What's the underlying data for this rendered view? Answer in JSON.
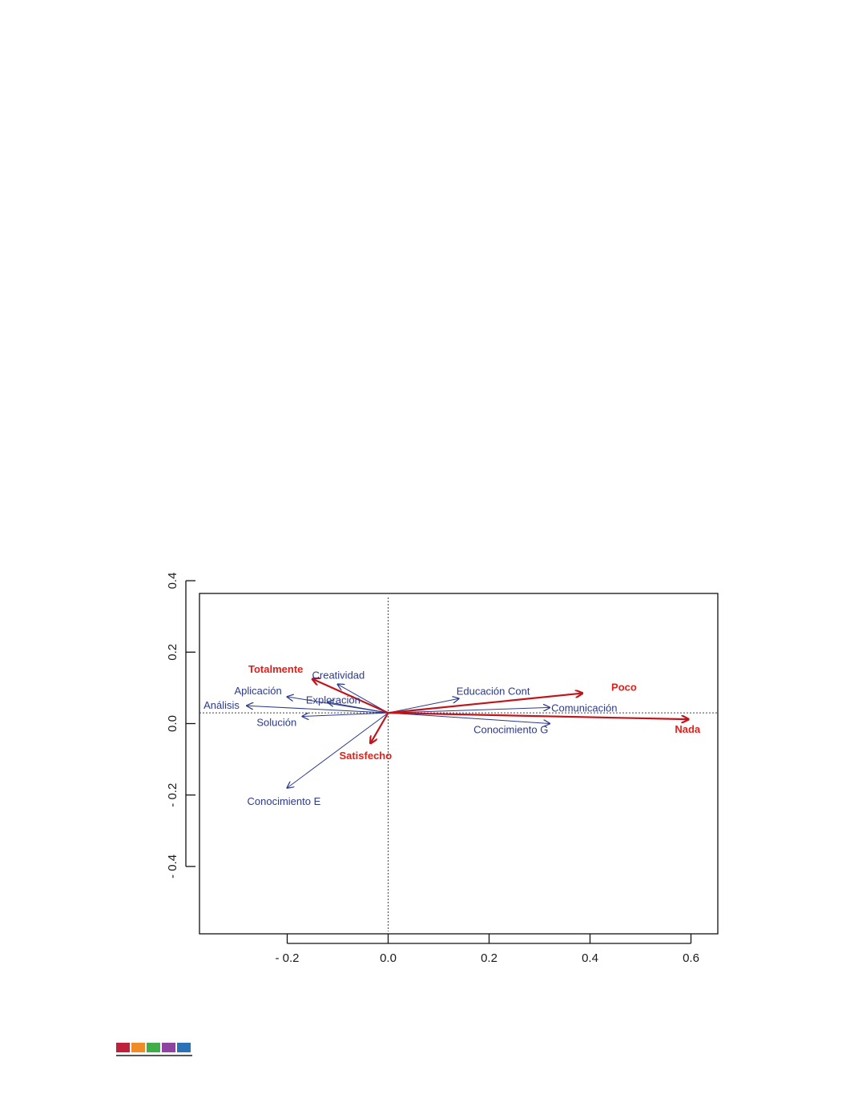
{
  "chart_data": {
    "type": "biplot",
    "title": "",
    "xlabel": "",
    "ylabel": "",
    "xlim": [
      -0.36,
      0.66
    ],
    "ylim": [
      -0.54,
      0.43
    ],
    "x_ticks": [
      {
        "value": -0.2,
        "label": "- 0.2"
      },
      {
        "value": 0.0,
        "label": "0.0"
      },
      {
        "value": 0.2,
        "label": "0.2"
      },
      {
        "value": 0.4,
        "label": "0.4"
      },
      {
        "value": 0.6,
        "label": "0.6"
      }
    ],
    "y_ticks": [
      {
        "value": 0.4,
        "label": "0.4"
      },
      {
        "value": 0.2,
        "label": "0.2"
      },
      {
        "value": 0.0,
        "label": "0.0"
      },
      {
        "value": -0.2,
        "label": "- 0.2"
      },
      {
        "value": -0.4,
        "label": "- 0.4"
      }
    ],
    "origin": [
      0.0,
      0.03
    ],
    "reference_lines": {
      "x": 0.0,
      "y": 0.03,
      "style": "dotted"
    },
    "grid": false,
    "series": [
      {
        "style": "blue",
        "vectors": [
          {
            "label": "Creatividad",
            "x": -0.1,
            "y": 0.11
          },
          {
            "label": "Aplicación",
            "x": -0.2,
            "y": 0.075
          },
          {
            "label": "Exploración",
            "x": -0.12,
            "y": 0.06
          },
          {
            "label": "Análisis",
            "x": -0.28,
            "y": 0.05
          },
          {
            "label": "Solución",
            "x": -0.17,
            "y": 0.02
          },
          {
            "label": "Conocimiento E",
            "x": -0.2,
            "y": -0.18
          },
          {
            "label": "Educación Cont",
            "x": 0.14,
            "y": 0.07
          },
          {
            "label": "Comunicación",
            "x": 0.32,
            "y": 0.045
          },
          {
            "label": "Conocimiento G",
            "x": 0.32,
            "y": 0.0
          }
        ]
      },
      {
        "style": "red",
        "vectors": [
          {
            "label": "Totalmente",
            "x": -0.15,
            "y": 0.125
          },
          {
            "label": "Satisfecho",
            "x": -0.035,
            "y": -0.055
          },
          {
            "label": "Poco",
            "x": 0.385,
            "y": 0.085
          },
          {
            "label": "Nada",
            "x": 0.595,
            "y": 0.012
          }
        ]
      }
    ],
    "colors": {
      "blue": "#2b3a8c",
      "red": "#c0151a",
      "red_label": "#e0201b"
    }
  },
  "footer": {
    "swatches": [
      "#c0213a",
      "#f08c28",
      "#3fae49",
      "#8c44a0",
      "#2a72b8"
    ]
  }
}
